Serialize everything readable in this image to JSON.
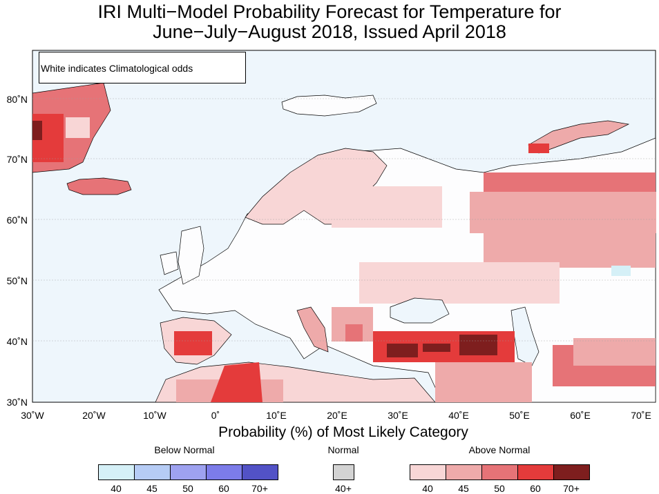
{
  "title": {
    "line1": "IRI Multi−Model Probability Forecast for Temperature for",
    "line2": "June−July−August 2018, Issued April 2018"
  },
  "map": {
    "note": "White indicates Climatological odds",
    "lat_labels": [
      "80˚N",
      "70˚N",
      "60˚N",
      "50˚N",
      "40˚N",
      "30˚N"
    ],
    "lon_labels": [
      "30˚W",
      "20˚W",
      "10˚W",
      "0˚",
      "10˚E",
      "20˚E",
      "30˚E",
      "40˚E",
      "50˚E",
      "60˚E",
      "70˚E"
    ],
    "colors": {
      "ocean": "#eef6fc",
      "land_climatology": "#fdfdfe",
      "above_40": "#f8d6d6",
      "above_45": "#eeaaaa",
      "above_50": "#e67377",
      "above_60": "#e43b3b",
      "above_70": "#7e1e1e",
      "below_40": "#d5f0f7"
    }
  },
  "legend": {
    "title": "Probability (%) of Most Likely Category",
    "below": {
      "label": "Below Normal",
      "ticks": [
        "40",
        "45",
        "50",
        "60",
        "70+"
      ],
      "colors": [
        "#d5f0f7",
        "#b6ccf5",
        "#9ea2f0",
        "#7c7ce9",
        "#5252c6"
      ]
    },
    "normal": {
      "label": "Normal",
      "ticks": [
        "40+"
      ],
      "colors": [
        "#d3d3d3"
      ]
    },
    "above": {
      "label": "Above Normal",
      "ticks": [
        "40",
        "45",
        "50",
        "60",
        "70+"
      ],
      "colors": [
        "#f8d6d6",
        "#eeaaaa",
        "#e67377",
        "#e43b3b",
        "#7e1e1e"
      ]
    }
  }
}
